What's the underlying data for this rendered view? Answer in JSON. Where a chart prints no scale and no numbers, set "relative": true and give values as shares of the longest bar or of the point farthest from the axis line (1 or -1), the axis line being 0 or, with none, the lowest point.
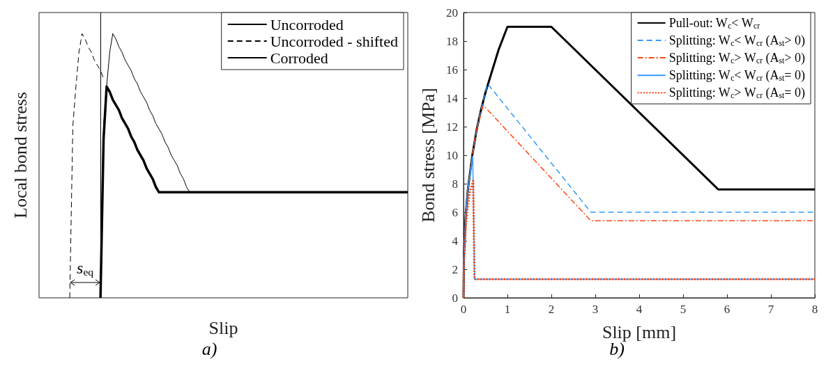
{
  "chart_data": [
    {
      "type": "line",
      "xlabel": "Slip",
      "ylabel": "Local bond stress",
      "relative": true,
      "legend": "top right",
      "grid": false,
      "marker": "none",
      "annotations": [
        "s$_{eq}$",
        "a)"
      ],
      "categories": [
        null,
        null,
        null,
        null,
        null,
        null,
        null,
        null,
        null,
        null,
        null,
        null,
        null,
        null,
        null,
        null,
        null,
        null,
        null,
        null,
        null,
        null,
        null,
        null,
        null,
        null,
        null,
        null,
        null,
        null,
        null,
        null,
        null,
        null,
        null,
        null,
        null,
        null,
        null,
        null,
        null,
        null,
        null,
        null,
        null,
        null,
        null,
        null,
        null,
        null,
        null,
        null,
        null,
        null,
        null,
        null,
        null,
        null,
        null,
        null,
        null,
        null,
        null,
        null,
        null,
        null,
        null,
        null,
        null,
        null,
        null,
        null,
        null,
        null,
        null,
        null,
        null,
        null,
        null,
        null,
        null,
        null,
        null,
        null,
        null,
        null,
        null,
        null,
        null,
        null,
        null,
        null,
        null,
        null,
        null,
        null,
        null,
        null,
        null,
        null,
        null,
        null,
        null,
        null,
        null,
        null,
        null,
        null,
        null,
        null,
        null,
        null,
        null,
        null,
        null,
        null,
        null,
        null,
        null,
        null,
        null
      ],
      "series": [
        {
          "name": "Uncorroded",
          "color": "#000000",
          "line_style": "solid",
          "values": [
            null,
            null,
            null,
            null,
            null,
            null,
            null,
            null,
            null,
            null,
            null,
            null,
            null,
            null,
            null,
            null,
            null,
            null,
            null,
            null,
            0,
            0.65,
            0.8,
            0.93,
            1,
            0.98,
            0.95,
            0.93,
            0.9,
            0.88,
            0.86,
            0.83,
            0.81,
            0.78,
            0.76,
            0.74,
            0.71,
            0.69,
            0.66,
            0.64,
            0.62,
            0.59,
            0.57,
            0.54,
            0.52,
            0.5,
            0.47,
            0.45,
            0.42,
            0.4,
            0.4,
            0.4,
            0.4,
            0.4,
            0.4,
            0.4,
            0.4,
            0.4,
            0.4,
            0.4,
            0.4,
            0.4,
            0.4,
            0.4,
            0.4,
            0.4,
            0.4,
            0.4,
            0.4,
            0.4,
            0.4,
            0.4,
            0.4,
            0.4,
            0.4,
            0.4,
            0.4,
            0.4,
            0.4,
            0.4,
            0.4,
            0.4,
            0.4,
            0.4,
            0.4,
            0.4,
            0.4,
            0.4,
            0.4,
            0.4,
            0.4,
            0.4,
            0.4,
            0.4,
            0.4,
            0.4,
            0.4,
            0.4,
            0.4,
            0.4,
            0.4,
            0.4,
            0.4,
            0.4,
            0.4,
            0.4,
            0.4,
            0.4,
            0.4,
            0.4,
            0.4,
            0.4,
            0.4,
            0.4,
            0.4,
            0.4,
            0.4,
            0.4,
            0.4,
            0.4,
            0.4
          ]
        },
        {
          "name": "Uncorroded - shifted",
          "color": "#000000",
          "line_style": "dashed",
          "values": [
            null,
            null,
            null,
            null,
            null,
            null,
            null,
            null,
            null,
            null,
            0,
            0.65,
            0.8,
            0.93,
            1,
            0.98,
            0.95,
            0.93,
            0.9,
            0.88,
            0.86,
            0.83,
            null,
            null,
            null,
            null,
            null,
            null,
            null,
            null,
            null,
            null,
            null,
            null,
            null,
            null,
            null,
            null,
            null,
            null,
            null,
            null,
            null,
            null,
            null,
            null,
            null,
            null,
            null,
            null,
            null,
            null,
            null,
            null,
            null,
            null,
            null,
            null,
            null,
            null,
            null,
            null,
            null,
            null,
            null,
            null,
            null,
            null,
            null,
            null,
            null,
            null,
            null,
            null,
            null,
            null,
            null,
            null,
            null,
            null,
            null,
            null,
            null,
            null,
            null,
            null,
            null,
            null,
            null,
            null,
            null,
            null,
            null,
            null,
            null,
            null,
            null,
            null,
            null,
            null,
            null,
            null,
            null,
            null,
            null,
            null,
            null,
            null,
            null,
            null,
            null,
            null,
            null,
            null,
            null,
            null,
            null,
            null,
            null,
            null,
            null
          ]
        },
        {
          "name": "Corroded",
          "color": "#000000",
          "line_style": "solid",
          "values": [
            null,
            null,
            null,
            null,
            null,
            null,
            null,
            null,
            null,
            null,
            null,
            null,
            null,
            null,
            null,
            null,
            null,
            null,
            null,
            null,
            0,
            0.6,
            0.8,
            0.78,
            0.75,
            0.73,
            0.71,
            0.68,
            0.66,
            0.64,
            0.61,
            0.59,
            0.56,
            0.54,
            0.52,
            0.49,
            0.47,
            0.45,
            0.42,
            0.4,
            0.4,
            0.4,
            0.4,
            0.4,
            0.4,
            0.4,
            0.4,
            0.4,
            0.4,
            0.4,
            0.4,
            0.4,
            0.4,
            0.4,
            0.4,
            0.4,
            0.4,
            0.4,
            0.4,
            0.4,
            0.4,
            0.4,
            0.4,
            0.4,
            0.4,
            0.4,
            0.4,
            0.4,
            0.4,
            0.4,
            0.4,
            0.4,
            0.4,
            0.4,
            0.4,
            0.4,
            0.4,
            0.4,
            0.4,
            0.4,
            0.4,
            0.4,
            0.4,
            0.4,
            0.4,
            0.4,
            0.4,
            0.4,
            0.4,
            0.4,
            0.4,
            0.4,
            0.4,
            0.4,
            0.4,
            0.4,
            0.4,
            0.4,
            0.4,
            0.4,
            0.4,
            0.4,
            0.4,
            0.4,
            0.4,
            0.4,
            0.4,
            0.4,
            0.4,
            0.4,
            0.4,
            0.4,
            0.4,
            0.4,
            0.4,
            0.4,
            0.4,
            0.4,
            0.4,
            0.4,
            0.4
          ]
        }
      ]
    },
    {
      "type": "line",
      "xlabel": "Slip [mm]",
      "ylabel": "Bond stress [MPa]",
      "legend": "top right",
      "grid": false,
      "marker": "none",
      "xlim": [
        0,
        8
      ],
      "xticks": [
        0,
        1,
        2,
        3,
        4,
        5,
        6,
        7,
        8
      ],
      "ylim": [
        0,
        20
      ],
      "yticks": [
        0,
        2,
        4,
        6,
        8,
        10,
        12,
        14,
        16,
        18,
        20
      ],
      "annotations": [
        "b)"
      ],
      "series": [
        {
          "name": "Pull-out: W$_{c}$< W$_{cr}$",
          "color": "#000000",
          "line_style": "solid",
          "x": [
            0,
            0.01,
            0.05,
            0.1,
            0.2,
            0.3,
            0.4,
            0.5,
            0.6,
            0.8,
            1,
            2,
            5.8,
            8
          ],
          "values": [
            0,
            3,
            5.8,
            7.6,
            10,
            11.8,
            13.2,
            14.4,
            15.4,
            17.4,
            19,
            19,
            7.6,
            7.6
          ]
        },
        {
          "name": "Splitting: W$_{c}$< W$_{cr}$ (A$_{st}$> 0)",
          "color": "#3399ff",
          "line_style": "dashed",
          "x": [
            0,
            0.01,
            0.05,
            0.1,
            0.2,
            0.3,
            0.4,
            0.55,
            2.9,
            8
          ],
          "values": [
            0,
            3,
            5.8,
            7.6,
            10,
            11.8,
            13.2,
            15,
            6,
            6
          ]
        },
        {
          "name": "Splitting: W$_{c}$> W$_{cr}$ (A$_{st}$> 0)",
          "color": "#ff4411",
          "line_style": "dashdot",
          "x": [
            0,
            0.01,
            0.05,
            0.1,
            0.2,
            0.3,
            0.45,
            2.9,
            8
          ],
          "values": [
            0,
            3,
            5.8,
            7.6,
            10,
            11.8,
            13.5,
            5.4,
            5.4
          ]
        },
        {
          "name": "Splitting: W$_{c}$< W$_{cr}$ (A$_{st}$= 0)",
          "color": "#3399ff",
          "line_style": "solid",
          "x": [
            0,
            0.01,
            0.05,
            0.1,
            0.21,
            0.25,
            8
          ],
          "values": [
            0,
            3,
            5.8,
            7.6,
            9.9,
            1.3,
            1.3
          ]
        },
        {
          "name": "Splitting: W$_{c}$> W$_{cr}$ (A$_{st}$= 0)",
          "color": "#ff4411",
          "line_style": "dotted",
          "x": [
            0,
            0.01,
            0.05,
            0.1,
            0.15,
            0.22,
            0.25,
            8
          ],
          "values": [
            0,
            2.5,
            5,
            6.5,
            7.5,
            8.2,
            1.3,
            1.3
          ]
        }
      ]
    }
  ]
}
